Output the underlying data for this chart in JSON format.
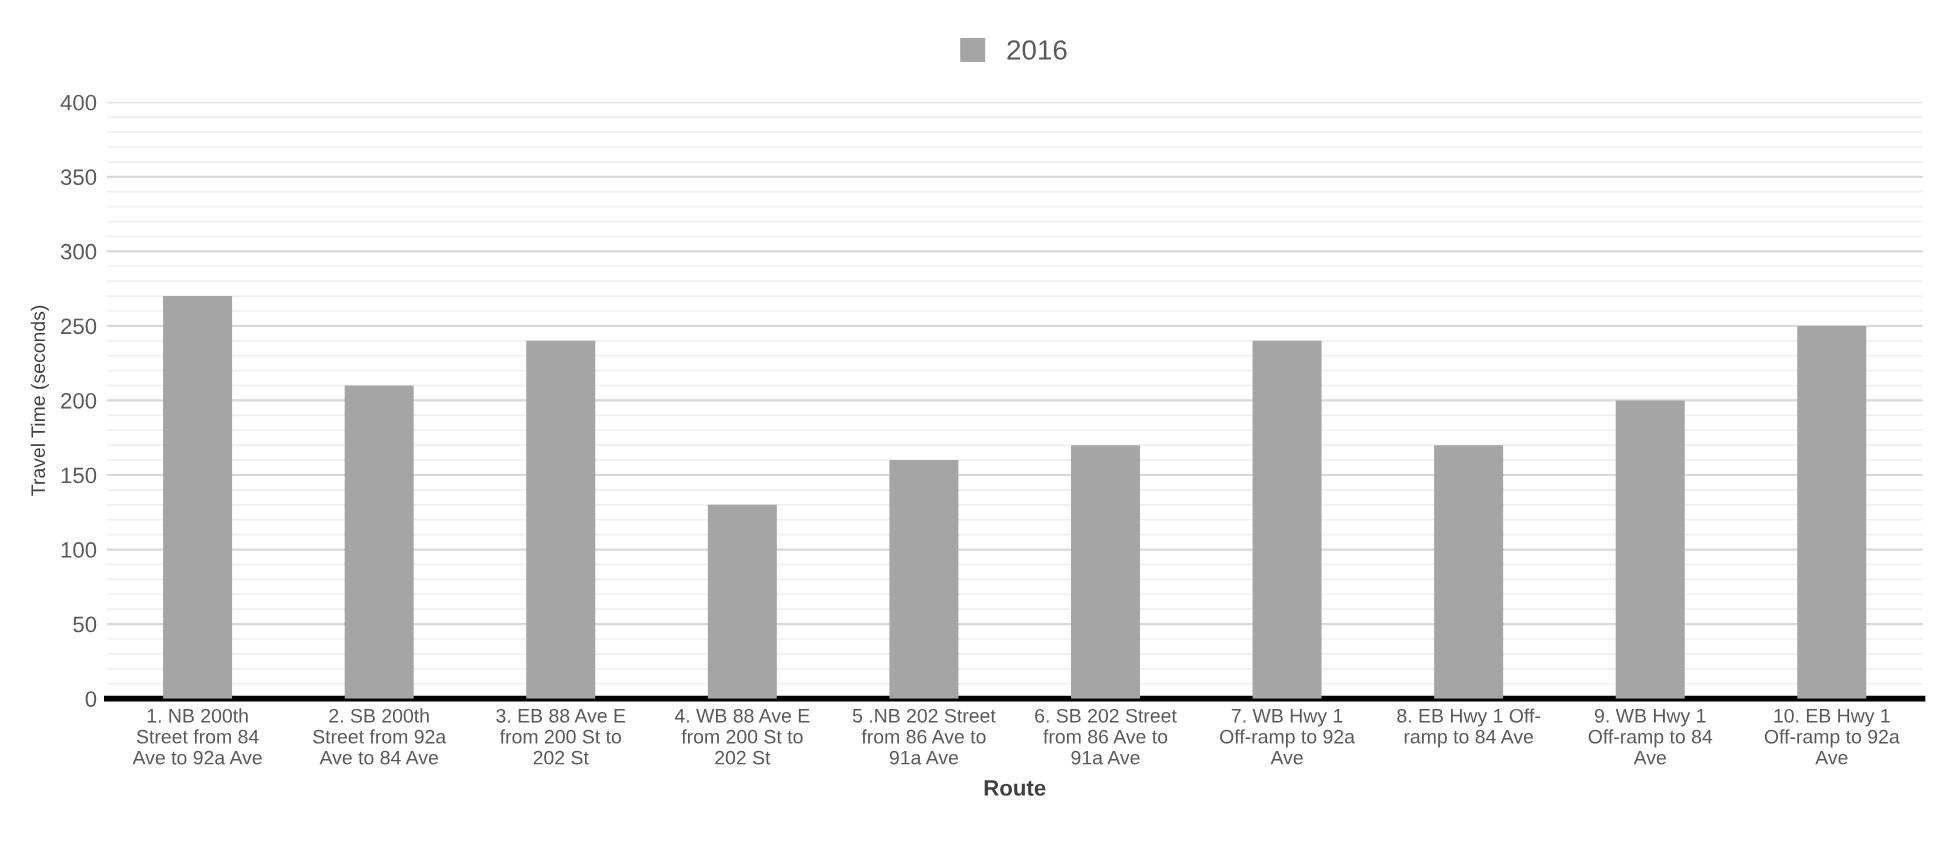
{
  "chart_data": {
    "type": "bar",
    "xlabel": "Route",
    "ylabel": "Travel Time (seconds)",
    "categories": [
      "1. NB 200th\nStreet from 84\nAve to 92a Ave",
      "2. SB 200th\nStreet from 92a\nAve to 84 Ave",
      "3. EB 88 Ave E\nfrom 200 St to\n202 St",
      "4. WB 88 Ave E\nfrom 200 St to\n202 St",
      "5 .NB 202 Street\nfrom 86 Ave to\n91a Ave",
      "6. SB 202 Street\nfrom 86 Ave to\n91a Ave",
      "7. WB Hwy 1\nOff-ramp to 92a\nAve",
      "8. EB Hwy 1 Off-\nramp to 84 Ave",
      "9. WB Hwy 1\nOff-ramp to 84\nAve",
      "10. EB Hwy 1\nOff-ramp to 92a\nAve"
    ],
    "series": [
      {
        "name": "2016",
        "color": "#a5a5a5",
        "values": [
          270,
          210,
          240,
          130,
          160,
          170,
          240,
          170,
          200,
          250
        ]
      }
    ],
    "ylim": [
      0,
      400
    ],
    "yticks": [
      0,
      50,
      100,
      150,
      200,
      250,
      300,
      350,
      400
    ],
    "grid": "y",
    "legend": "top"
  }
}
